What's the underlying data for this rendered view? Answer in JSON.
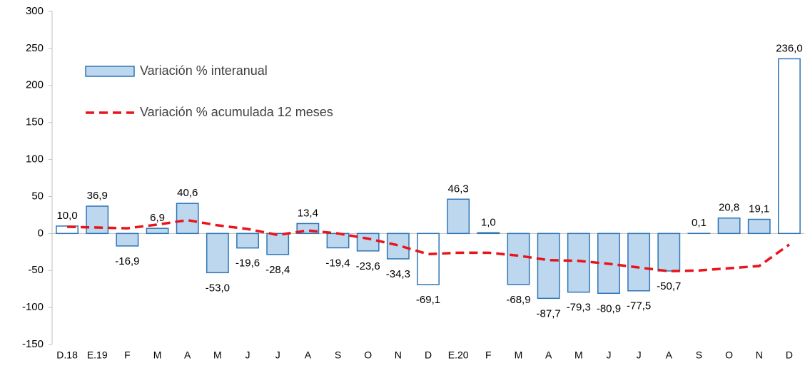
{
  "chart_data": {
    "type": "bar",
    "categories": [
      "D.18",
      "E.19",
      "F",
      "M",
      "A",
      "M",
      "J",
      "J",
      "A",
      "S",
      "O",
      "N",
      "D",
      "E.20",
      "F",
      "M",
      "A",
      "M",
      "J",
      "J",
      "A",
      "S",
      "O",
      "N",
      "D"
    ],
    "series": [
      {
        "name": "Variación % interanual",
        "type": "bar",
        "color": "#bdd7ee",
        "edge_color": "#2e75b6",
        "bar_fills": [
          "#ffffff",
          "#bdd7ee",
          "#bdd7ee",
          "#bdd7ee",
          "#bdd7ee",
          "#bdd7ee",
          "#bdd7ee",
          "#bdd7ee",
          "#bdd7ee",
          "#bdd7ee",
          "#bdd7ee",
          "#bdd7ee",
          "#ffffff",
          "#bdd7ee",
          "#bdd7ee",
          "#bdd7ee",
          "#bdd7ee",
          "#bdd7ee",
          "#bdd7ee",
          "#bdd7ee",
          "#bdd7ee",
          "#bdd7ee",
          "#bdd7ee",
          "#bdd7ee",
          "#ffffff"
        ],
        "values": [
          10.0,
          36.9,
          -16.9,
          6.9,
          40.6,
          -53.0,
          -19.6,
          -28.4,
          13.4,
          -19.4,
          -23.6,
          -34.3,
          -69.1,
          46.3,
          1.0,
          -68.9,
          -87.7,
          -79.3,
          -80.9,
          -77.5,
          -50.7,
          0.1,
          20.8,
          19.1,
          236.0
        ],
        "value_labels": [
          "10,0",
          "36,9",
          "-16,9",
          "6,9",
          "40,6",
          "-53,0",
          "-19,6",
          "-28,4",
          "13,4",
          "-19,4",
          "-23,6",
          "-34,3",
          "-69,1",
          "46,3",
          "1,0",
          "-68,9",
          "-87,7",
          "-79,3",
          "-80,9",
          "-77,5",
          "-50,7",
          "0,1",
          "20,8",
          "19,1",
          "236,0"
        ]
      },
      {
        "name": "Variación % acumulada 12 meses",
        "type": "line",
        "color": "#e8141b",
        "dashed": true,
        "values": [
          9,
          8,
          7,
          12,
          18,
          11,
          6,
          -2,
          4,
          0,
          -7,
          -16,
          -28,
          -26,
          -26,
          -30,
          -36,
          -37,
          -41,
          -46,
          -51,
          -50,
          -47,
          -44,
          -15
        ]
      }
    ],
    "ylim": [
      -150,
      300
    ],
    "yticks": [
      -150,
      -100,
      -50,
      0,
      50,
      100,
      150,
      200,
      250,
      300
    ],
    "legend": "upper left"
  }
}
